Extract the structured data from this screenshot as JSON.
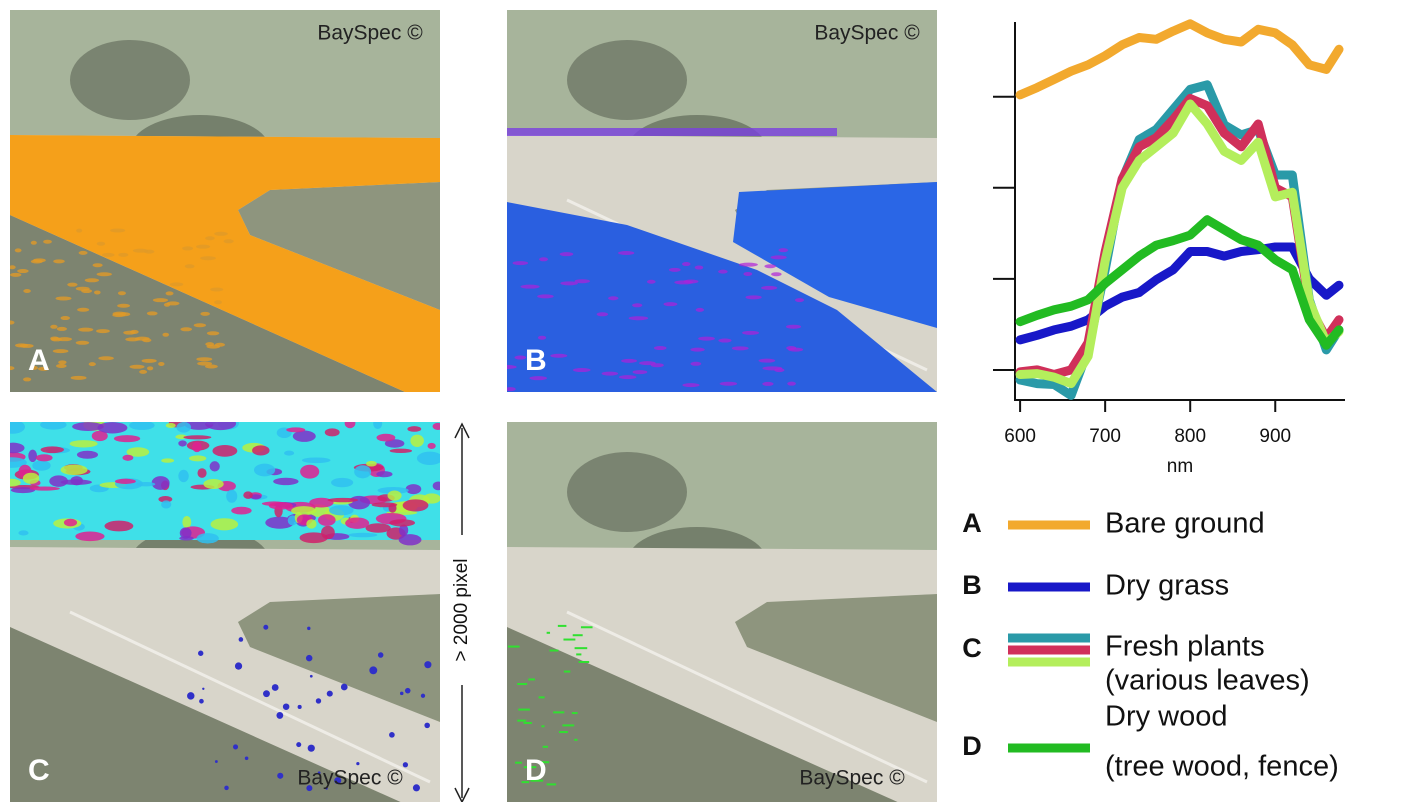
{
  "panels": [
    {
      "letter": "A",
      "watermark": "BaySpec ©"
    },
    {
      "letter": "B",
      "watermark": "BaySpec ©"
    },
    {
      "letter": "C",
      "watermark": "BaySpec ©"
    },
    {
      "letter": "D",
      "watermark": "BaySpec ©"
    }
  ],
  "dimension_label": "> 2000 pixel",
  "chart_data": {
    "type": "line",
    "x_label": "nm",
    "x": [
      600,
      620,
      640,
      660,
      680,
      700,
      720,
      740,
      760,
      780,
      800,
      820,
      840,
      860,
      880,
      900,
      920,
      940,
      960,
      975
    ],
    "xlim": [
      594,
      982
    ],
    "xticks": [
      600,
      700,
      800,
      900
    ],
    "ylim": [
      0.67,
      4.82
    ],
    "yticks": [
      1,
      2,
      3,
      4
    ],
    "series": [
      {
        "color": "#f2a92e",
        "values": [
          4.02,
          4.1,
          4.19,
          4.28,
          4.35,
          4.45,
          4.57,
          4.65,
          4.63,
          4.72,
          4.8,
          4.7,
          4.63,
          4.6,
          4.74,
          4.7,
          4.57,
          4.35,
          4.3,
          4.52
        ]
      },
      {
        "color": "#1818c8",
        "values": [
          1.33,
          1.38,
          1.44,
          1.48,
          1.55,
          1.7,
          1.8,
          1.85,
          1.99,
          2.1,
          2.3,
          2.3,
          2.25,
          2.3,
          2.32,
          2.35,
          2.35,
          2.0,
          1.82,
          1.93
        ]
      },
      {
        "color": "#2a9aa8",
        "values": [
          0.89,
          0.85,
          0.84,
          0.72,
          1.22,
          2.1,
          3.09,
          3.53,
          3.64,
          3.86,
          4.08,
          4.13,
          3.69,
          3.58,
          3.64,
          3.14,
          3.14,
          1.77,
          1.22,
          1.44
        ]
      },
      {
        "color": "#d0305a",
        "values": [
          0.98,
          1.0,
          0.95,
          1.0,
          1.3,
          2.3,
          3.1,
          3.45,
          3.55,
          3.75,
          3.98,
          3.9,
          3.6,
          3.45,
          3.7,
          3.0,
          2.9,
          1.7,
          1.35,
          1.55
        ]
      },
      {
        "color": "#b4ee5c",
        "values": [
          0.95,
          0.96,
          0.92,
          0.85,
          1.15,
          2.2,
          3.0,
          3.3,
          3.45,
          3.6,
          3.92,
          3.7,
          3.4,
          3.3,
          3.5,
          2.9,
          2.95,
          1.75,
          1.3,
          1.42
        ]
      },
      {
        "color": "#22bb22",
        "values": [
          1.53,
          1.6,
          1.66,
          1.7,
          1.77,
          1.95,
          2.1,
          2.25,
          2.37,
          2.42,
          2.48,
          2.65,
          2.54,
          2.43,
          2.37,
          2.21,
          2.1,
          1.55,
          1.27,
          1.44
        ]
      }
    ],
    "legend": [
      {
        "letter": "A",
        "lines": [
          "Bare ground"
        ]
      },
      {
        "letter": "B",
        "lines": [
          "Dry grass"
        ]
      },
      {
        "letter": "C",
        "lines": [
          "Fresh plants",
          "(various leaves)"
        ]
      },
      {
        "letter": "D",
        "lines": [
          "Dry wood",
          "(tree wood, fence)"
        ]
      }
    ]
  }
}
